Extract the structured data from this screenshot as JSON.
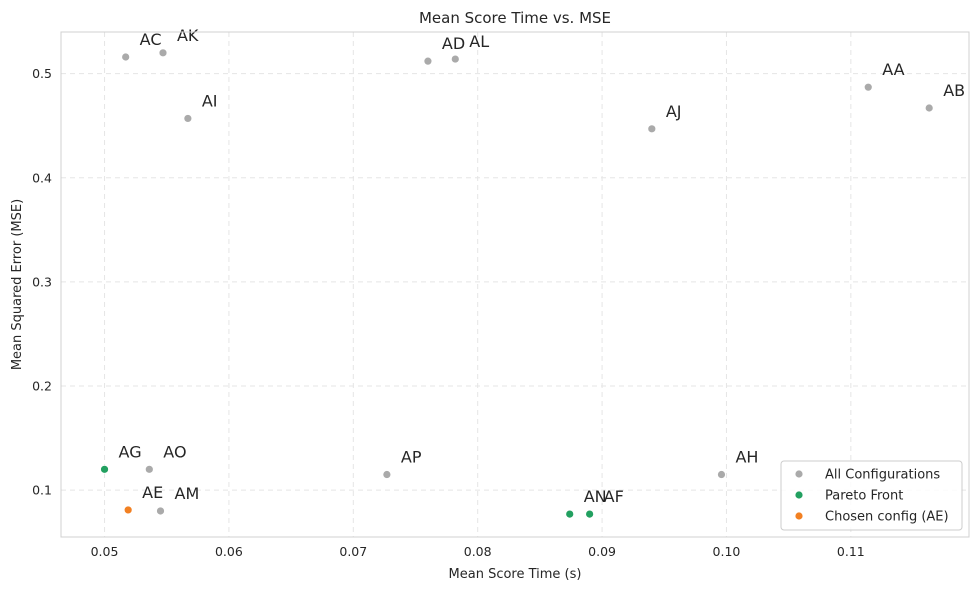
{
  "chart_data": {
    "type": "scatter",
    "title": "Mean Score Time vs. MSE",
    "xlabel": "Mean Score Time (s)",
    "ylabel": "Mean Squared Error (MSE)",
    "xlim": [
      0.0465,
      0.1195
    ],
    "ylim": [
      0.055,
      0.54
    ],
    "x_ticks": [
      0.05,
      0.06,
      0.07,
      0.08,
      0.09,
      0.1,
      0.11
    ],
    "x_tick_labels": [
      "0.05",
      "0.06",
      "0.07",
      "0.08",
      "0.09",
      "0.10",
      "0.11"
    ],
    "y_ticks": [
      0.1,
      0.2,
      0.3,
      0.4,
      0.5
    ],
    "y_tick_labels": [
      "0.1",
      "0.2",
      "0.3",
      "0.4",
      "0.5"
    ],
    "grid": true,
    "legend_position": "bottom-right",
    "series": [
      {
        "name": "All Configurations",
        "color": "#aaaaaa",
        "points": [
          {
            "label": "AC",
            "x": 0.0517,
            "y": 0.516
          },
          {
            "label": "AK",
            "x": 0.0547,
            "y": 0.52
          },
          {
            "label": "AI",
            "x": 0.0567,
            "y": 0.457
          },
          {
            "label": "AD",
            "x": 0.076,
            "y": 0.512
          },
          {
            "label": "AL",
            "x": 0.0782,
            "y": 0.514
          },
          {
            "label": "AJ",
            "x": 0.094,
            "y": 0.447
          },
          {
            "label": "AA",
            "x": 0.1114,
            "y": 0.487
          },
          {
            "label": "AB",
            "x": 0.1163,
            "y": 0.467
          },
          {
            "label": "AO",
            "x": 0.0536,
            "y": 0.12
          },
          {
            "label": "AM",
            "x": 0.0545,
            "y": 0.08
          },
          {
            "label": "AP",
            "x": 0.0727,
            "y": 0.115
          },
          {
            "label": "AH",
            "x": 0.0996,
            "y": 0.115
          }
        ]
      },
      {
        "name": "Pareto Front",
        "color": "#22a060",
        "points": [
          {
            "label": "AG",
            "x": 0.05,
            "y": 0.12
          },
          {
            "label": "AN",
            "x": 0.0874,
            "y": 0.077
          },
          {
            "label": "AF",
            "x": 0.089,
            "y": 0.077
          }
        ]
      },
      {
        "name": "Chosen config (AE)",
        "color": "#f28022",
        "points": [
          {
            "label": "AE",
            "x": 0.0519,
            "y": 0.081
          }
        ]
      }
    ]
  }
}
